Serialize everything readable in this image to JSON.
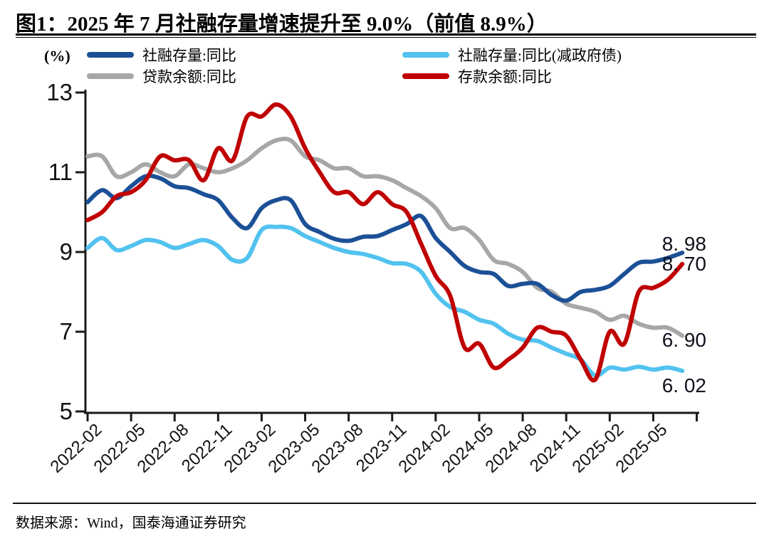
{
  "title": "图1：2025 年 7 月社融存量增速提升至 9.0%（前值 8.9%）",
  "y_axis_unit": "(%)",
  "footer": "数据来源：Wind，国泰海通证券研究",
  "legend": {
    "items": [
      {
        "label": "社融存量:同比",
        "color": "#1b5096"
      },
      {
        "label": "社融存量:同比(减政府债)",
        "color": "#52c2ef"
      },
      {
        "label": "贷款余额:同比",
        "color": "#a7a7a7"
      },
      {
        "label": "存款余额:同比",
        "color": "#c00000"
      }
    ]
  },
  "end_labels": [
    {
      "text": "8. 98",
      "series": "社融存量:同比"
    },
    {
      "text": "8. 70",
      "series": "存款余额:同比"
    },
    {
      "text": "6. 90",
      "series": "贷款余额:同比"
    },
    {
      "text": "6. 02",
      "series": "社融存量:同比(减政府债)"
    }
  ],
  "chart_data": {
    "type": "line",
    "ylim": [
      5,
      13
    ],
    "yticks": [
      5,
      7,
      9,
      11,
      13
    ],
    "grid": false,
    "legend_position": "top",
    "x": [
      "2022-02",
      "2022-03",
      "2022-04",
      "2022-05",
      "2022-06",
      "2022-07",
      "2022-08",
      "2022-09",
      "2022-10",
      "2022-11",
      "2022-12",
      "2023-01",
      "2023-02",
      "2023-03",
      "2023-04",
      "2023-05",
      "2023-06",
      "2023-07",
      "2023-08",
      "2023-09",
      "2023-10",
      "2023-11",
      "2023-12",
      "2024-01",
      "2024-02",
      "2024-03",
      "2024-04",
      "2024-05",
      "2024-06",
      "2024-07",
      "2024-08",
      "2024-09",
      "2024-10",
      "2024-11",
      "2024-12",
      "2025-01",
      "2025-02",
      "2025-03",
      "2025-04",
      "2025-05",
      "2025-06",
      "2025-07"
    ],
    "x_tick_labels": [
      "2022-02",
      "2022-05",
      "2022-08",
      "2022-11",
      "2023-02",
      "2023-05",
      "2023-08",
      "2023-11",
      "2024-02",
      "2024-05",
      "2024-08",
      "2024-11",
      "2025-02",
      "2025-05"
    ],
    "series": [
      {
        "name": "社融存量:同比",
        "color": "#1b5096",
        "values": [
          10.25,
          10.55,
          10.35,
          10.65,
          10.9,
          10.85,
          10.65,
          10.6,
          10.45,
          10.3,
          9.85,
          9.6,
          10.1,
          10.3,
          10.3,
          9.7,
          9.5,
          9.33,
          9.28,
          9.38,
          9.4,
          9.55,
          9.7,
          9.9,
          9.35,
          9.0,
          8.65,
          8.5,
          8.45,
          8.15,
          8.2,
          8.2,
          7.92,
          7.78,
          8.0,
          8.05,
          8.15,
          8.45,
          8.73,
          8.76,
          8.85,
          8.98
        ]
      },
      {
        "name": "社融存量:同比(减政府债)",
        "color": "#52c2ef",
        "values": [
          9.1,
          9.35,
          9.05,
          9.15,
          9.3,
          9.25,
          9.1,
          9.2,
          9.3,
          9.15,
          8.8,
          8.85,
          9.55,
          9.63,
          9.6,
          9.4,
          9.25,
          9.1,
          9.0,
          8.95,
          8.85,
          8.72,
          8.7,
          8.5,
          7.95,
          7.62,
          7.5,
          7.3,
          7.2,
          6.95,
          6.8,
          6.77,
          6.6,
          6.45,
          6.3,
          5.9,
          6.1,
          6.05,
          6.12,
          6.05,
          6.1,
          6.02
        ]
      },
      {
        "name": "贷款余额:同比",
        "color": "#a7a7a7",
        "values": [
          11.4,
          11.4,
          10.9,
          11.0,
          11.2,
          11.0,
          10.9,
          11.2,
          11.1,
          11.0,
          11.1,
          11.3,
          11.6,
          11.8,
          11.8,
          11.4,
          11.3,
          11.1,
          11.1,
          10.9,
          10.9,
          10.8,
          10.6,
          10.4,
          10.1,
          9.6,
          9.6,
          9.3,
          8.8,
          8.7,
          8.5,
          8.1,
          8.0,
          7.7,
          7.6,
          7.5,
          7.3,
          7.4,
          7.2,
          7.1,
          7.1,
          6.9
        ]
      },
      {
        "name": "存款余额:同比",
        "color": "#c00000",
        "values": [
          9.8,
          10.0,
          10.4,
          10.5,
          10.8,
          11.4,
          11.3,
          11.3,
          10.8,
          11.6,
          11.3,
          12.4,
          12.4,
          12.7,
          12.4,
          11.6,
          11.0,
          10.5,
          10.5,
          10.2,
          10.5,
          10.2,
          10.0,
          9.2,
          8.4,
          7.9,
          6.6,
          6.7,
          6.1,
          6.3,
          6.6,
          7.1,
          7.0,
          6.9,
          6.3,
          5.8,
          7.0,
          6.7,
          8.0,
          8.1,
          8.3,
          8.7
        ]
      }
    ]
  }
}
